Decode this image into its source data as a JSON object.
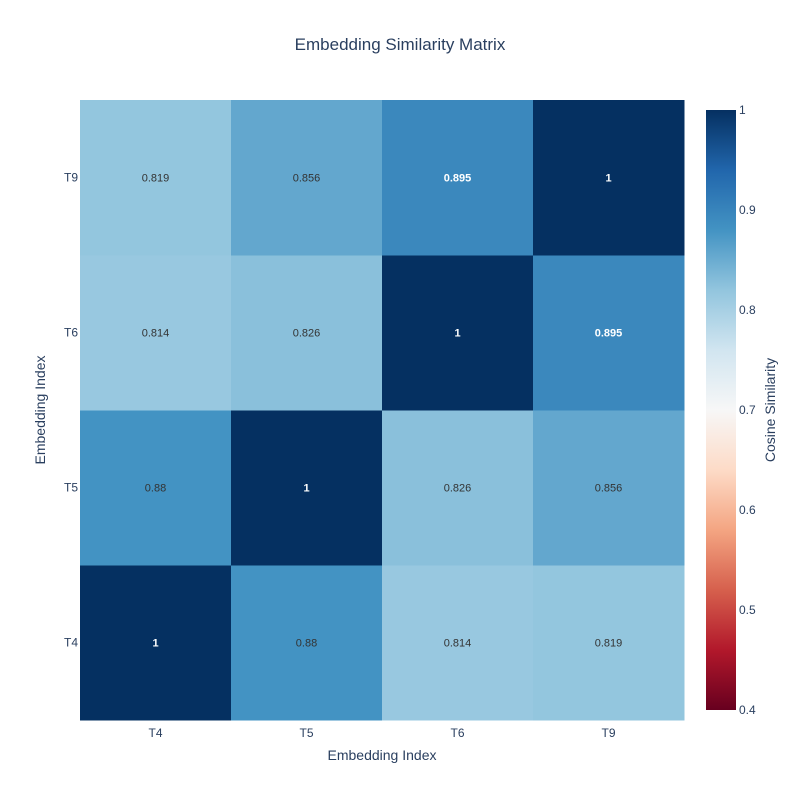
{
  "chart_data": {
    "type": "heatmap",
    "title": "Embedding Similarity Matrix",
    "xlabel": "Embedding Index",
    "ylabel": "Embedding Index",
    "x_categories": [
      "T4",
      "T5",
      "T6",
      "T9"
    ],
    "y_categories": [
      "T4",
      "T5",
      "T6",
      "T9"
    ],
    "z": [
      [
        1,
        0.88,
        0.814,
        0.819
      ],
      [
        0.88,
        1,
        0.826,
        0.856
      ],
      [
        0.814,
        0.826,
        1,
        0.895
      ],
      [
        0.819,
        0.856,
        0.895,
        1
      ]
    ],
    "cell_labels": [
      [
        "1",
        "0.88",
        "0.814",
        "0.819"
      ],
      [
        "0.88",
        "1",
        "0.826",
        "0.856"
      ],
      [
        "0.814",
        "0.826",
        "1",
        "0.895"
      ],
      [
        "0.819",
        "0.856",
        "0.895",
        "1"
      ]
    ],
    "colorscale": "RdBu",
    "zmin": 0.4,
    "zmax": 1,
    "colorbar": {
      "title": "Cosine Similarity",
      "ticks": [
        0.4,
        0.5,
        0.6,
        0.7,
        0.8,
        0.9,
        1
      ],
      "tick_labels": [
        "0.4",
        "0.5",
        "0.6",
        "0.7",
        "0.8",
        "0.9",
        "1"
      ]
    }
  },
  "colors": {
    "text": "#2a3f5f",
    "colorscale_stops": [
      "#67001f",
      "#b2182b",
      "#d6604d",
      "#f4a582",
      "#fddbc7",
      "#f7f7f7",
      "#d1e5f0",
      "#92c5de",
      "#4393c3",
      "#2166ac",
      "#053061"
    ]
  }
}
